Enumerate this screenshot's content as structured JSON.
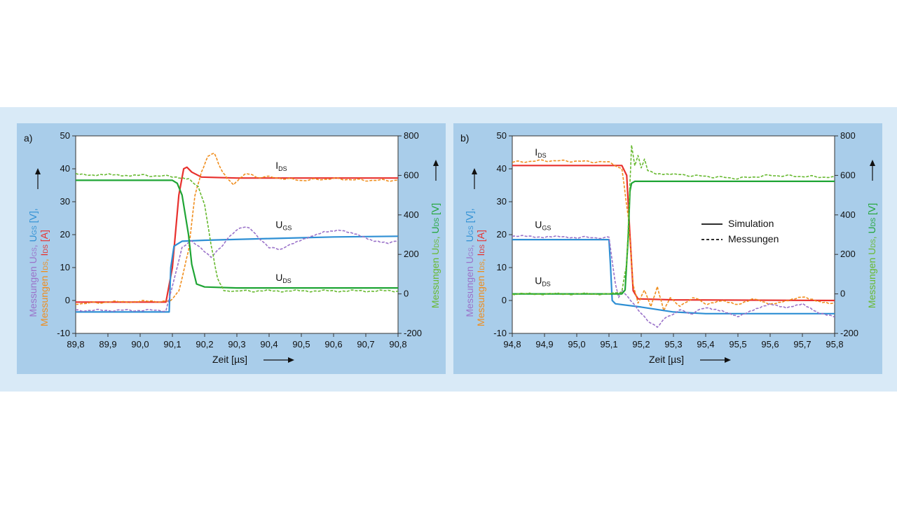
{
  "colors": {
    "simulation_ugs": "#2e8fd4",
    "simulation_ids": "#e8302d",
    "simulation_uds": "#1fa535",
    "measurement_ugs": "#9a72c9",
    "measurement_ids": "#f08d1c",
    "measurement_uds": "#67b92f"
  },
  "chart_data": [
    {
      "type": "line",
      "panel_label": "a)",
      "xlabel": "Zeit [µs]",
      "x_ticks": [
        "89,8",
        "89,9",
        "90,0",
        "90,1",
        "90,2",
        "90,3",
        "90,4",
        "90,5",
        "90,6",
        "90,7",
        "90,8"
      ],
      "xlim": [
        89.8,
        90.8
      ],
      "ylim_left": [
        -10,
        50
      ],
      "y_ticks_left": [
        "-10",
        "0",
        "10",
        "20",
        "30",
        "40",
        "50"
      ],
      "ylim_right": [
        -200,
        800
      ],
      "y_ticks_right": [
        "-200",
        "0",
        "200",
        "400",
        "600",
        "800"
      ],
      "ylabel_left": {
        "line1": [
          {
            "t": "Messungen U",
            "c": "measurement_ugs"
          },
          {
            "t": "GS",
            "c": "measurement_ugs",
            "sub": true
          },
          {
            "t": ", ",
            "c": "measurement_ugs"
          },
          {
            "t": "U",
            "c": "simulation_ugs"
          },
          {
            "t": "GS",
            "c": "simulation_ugs",
            "sub": true
          },
          {
            "t": " [V],",
            "c": "simulation_ugs"
          }
        ],
        "line2": [
          {
            "t": "Messungen I",
            "c": "measurement_ids"
          },
          {
            "t": "DS",
            "c": "measurement_ids",
            "sub": true
          },
          {
            "t": ", ",
            "c": "measurement_ids"
          },
          {
            "t": "I",
            "c": "simulation_ids"
          },
          {
            "t": "DS",
            "c": "simulation_ids",
            "sub": true
          },
          {
            "t": " [A]",
            "c": "simulation_ids"
          }
        ]
      },
      "ylabel_right": [
        {
          "t": "Messungen U",
          "c": "measurement_uds"
        },
        {
          "t": "DS",
          "c": "measurement_uds",
          "sub": true
        },
        {
          "t": ", ",
          "c": "measurement_uds"
        },
        {
          "t": "U",
          "c": "simulation_uds"
        },
        {
          "t": "DS",
          "c": "simulation_uds",
          "sub": true
        },
        {
          "t": " [V]",
          "c": "simulation_uds"
        }
      ],
      "annotations": [
        {
          "text": "I",
          "sub": "DS",
          "x": 90.42,
          "y": 40
        },
        {
          "text": "U",
          "sub": "GS",
          "x": 90.42,
          "y": 22
        },
        {
          "text": "U",
          "sub": "DS",
          "x": 90.42,
          "y": 6
        }
      ],
      "series": [
        {
          "color": "simulation_ids",
          "style": "solid",
          "axis": "left",
          "points": [
            [
              89.8,
              -0.5
            ],
            [
              90.08,
              -0.5
            ],
            [
              90.1,
              10
            ],
            [
              90.12,
              32
            ],
            [
              90.135,
              40
            ],
            [
              90.145,
              40.5
            ],
            [
              90.16,
              39
            ],
            [
              90.19,
              37.5
            ],
            [
              90.3,
              37.2
            ],
            [
              90.8,
              37.2
            ]
          ]
        },
        {
          "color": "measurement_ids",
          "style": "dashed",
          "axis": "left",
          "points": [
            [
              89.8,
              -1
            ],
            [
              89.9,
              -0.5
            ],
            [
              90.05,
              -0.2
            ],
            [
              90.09,
              -0.5
            ],
            [
              90.12,
              3
            ],
            [
              90.15,
              15
            ],
            [
              90.17,
              32
            ],
            [
              90.19,
              39
            ],
            [
              90.21,
              44
            ],
            [
              90.23,
              45
            ],
            [
              90.25,
              40
            ],
            [
              90.27,
              37
            ],
            [
              90.29,
              35
            ],
            [
              90.31,
              37
            ],
            [
              90.33,
              38.5
            ],
            [
              90.36,
              37.5
            ],
            [
              90.4,
              37.5
            ],
            [
              90.5,
              36.5
            ],
            [
              90.6,
              37
            ],
            [
              90.7,
              36.5
            ],
            [
              90.8,
              36.5
            ]
          ]
        },
        {
          "color": "simulation_ugs",
          "style": "solid",
          "axis": "left",
          "points": [
            [
              89.8,
              -3.5
            ],
            [
              90.09,
              -3.5
            ],
            [
              90.095,
              10
            ],
            [
              90.105,
              16.5
            ],
            [
              90.13,
              18
            ],
            [
              90.2,
              18.3
            ],
            [
              90.4,
              18.8
            ],
            [
              90.6,
              19.3
            ],
            [
              90.8,
              19.5
            ]
          ]
        },
        {
          "color": "measurement_ugs",
          "style": "dashed",
          "axis": "left",
          "points": [
            [
              89.8,
              -3
            ],
            [
              90.08,
              -3
            ],
            [
              90.11,
              8
            ],
            [
              90.13,
              16
            ],
            [
              90.16,
              18
            ],
            [
              90.19,
              16
            ],
            [
              90.22,
              13
            ],
            [
              90.25,
              16
            ],
            [
              90.28,
              20
            ],
            [
              90.31,
              22
            ],
            [
              90.34,
              22
            ],
            [
              90.37,
              19
            ],
            [
              90.4,
              16
            ],
            [
              90.43,
              15.5
            ],
            [
              90.47,
              17
            ],
            [
              90.52,
              19
            ],
            [
              90.57,
              21
            ],
            [
              90.62,
              21.5
            ],
            [
              90.67,
              20
            ],
            [
              90.72,
              18
            ],
            [
              90.77,
              17.5
            ],
            [
              90.8,
              18.5
            ]
          ]
        },
        {
          "color": "simulation_uds",
          "style": "solid",
          "axis": "right",
          "points": [
            [
              89.8,
              575
            ],
            [
              90.1,
              575
            ],
            [
              90.115,
              560
            ],
            [
              90.13,
              500
            ],
            [
              90.15,
              300
            ],
            [
              90.16,
              150
            ],
            [
              90.175,
              50
            ],
            [
              90.2,
              35
            ],
            [
              90.3,
              30
            ],
            [
              90.8,
              30
            ]
          ]
        },
        {
          "color": "measurement_uds",
          "style": "dashed",
          "axis": "right",
          "points": [
            [
              89.8,
              605
            ],
            [
              90.0,
              600
            ],
            [
              90.1,
              595
            ],
            [
              90.15,
              585
            ],
            [
              90.18,
              540
            ],
            [
              90.2,
              450
            ],
            [
              90.22,
              250
            ],
            [
              90.24,
              80
            ],
            [
              90.26,
              20
            ],
            [
              90.28,
              15
            ],
            [
              90.35,
              15
            ],
            [
              90.8,
              15
            ]
          ]
        }
      ]
    },
    {
      "type": "line",
      "panel_label": "b)",
      "xlabel": "Zeit [µs]",
      "x_ticks": [
        "94,8",
        "94,9",
        "95,0",
        "95,1",
        "95,2",
        "95,3",
        "95,4",
        "95,5",
        "95,6",
        "95,7",
        "95,8"
      ],
      "xlim": [
        94.8,
        95.8
      ],
      "ylim_left": [
        -10,
        50
      ],
      "y_ticks_left": [
        "-10",
        "0",
        "10",
        "20",
        "30",
        "40",
        "50"
      ],
      "ylim_right": [
        -200,
        800
      ],
      "y_ticks_right": [
        "-200",
        "0",
        "200",
        "400",
        "600",
        "800"
      ],
      "ylabel_left": {
        "line1": [
          {
            "t": "Messungen U",
            "c": "measurement_ugs"
          },
          {
            "t": "GS",
            "c": "measurement_ugs",
            "sub": true
          },
          {
            "t": ", ",
            "c": "measurement_ugs"
          },
          {
            "t": "U",
            "c": "simulation_ugs"
          },
          {
            "t": "GS",
            "c": "simulation_ugs",
            "sub": true
          },
          {
            "t": " [V],",
            "c": "simulation_ugs"
          }
        ],
        "line2": [
          {
            "t": "Messungen I",
            "c": "measurement_ids"
          },
          {
            "t": "DS",
            "c": "measurement_ids",
            "sub": true
          },
          {
            "t": ", ",
            "c": "measurement_ids"
          },
          {
            "t": "I",
            "c": "simulation_ids"
          },
          {
            "t": "DS",
            "c": "simulation_ids",
            "sub": true
          },
          {
            "t": " [A]",
            "c": "simulation_ids"
          }
        ]
      },
      "ylabel_right": [
        {
          "t": "Messungen U",
          "c": "measurement_uds"
        },
        {
          "t": "DS",
          "c": "measurement_uds",
          "sub": true
        },
        {
          "t": ", ",
          "c": "measurement_uds"
        },
        {
          "t": "U",
          "c": "simulation_uds"
        },
        {
          "t": "DS",
          "c": "simulation_uds",
          "sub": true
        },
        {
          "t": " [V]",
          "c": "simulation_uds"
        }
      ],
      "annotations": [
        {
          "text": "I",
          "sub": "DS",
          "x": 94.87,
          "y": 44
        },
        {
          "text": "U",
          "sub": "GS",
          "x": 94.87,
          "y": 22
        },
        {
          "text": "U",
          "sub": "DS",
          "x": 94.87,
          "y": 5
        }
      ],
      "legend": {
        "position": "center-right",
        "items": [
          {
            "label": "Simulation",
            "style": "solid"
          },
          {
            "label": "Messungen",
            "style": "dashed"
          }
        ]
      },
      "series": [
        {
          "color": "simulation_ids",
          "style": "solid",
          "axis": "left",
          "points": [
            [
              94.8,
              41
            ],
            [
              95.14,
              41
            ],
            [
              95.155,
              38
            ],
            [
              95.165,
              20
            ],
            [
              95.175,
              3
            ],
            [
              95.19,
              0.5
            ],
            [
              95.3,
              0.2
            ],
            [
              95.8,
              0
            ]
          ]
        },
        {
          "color": "measurement_ids",
          "style": "dashed",
          "axis": "left",
          "points": [
            [
              94.8,
              42
            ],
            [
              94.9,
              42.5
            ],
            [
              95.0,
              42.3
            ],
            [
              95.1,
              42
            ],
            [
              95.14,
              40
            ],
            [
              95.16,
              25
            ],
            [
              95.175,
              5
            ],
            [
              95.19,
              -1
            ],
            [
              95.21,
              3
            ],
            [
              95.23,
              -2
            ],
            [
              95.25,
              4
            ],
            [
              95.27,
              -3
            ],
            [
              95.29,
              1
            ],
            [
              95.32,
              -2
            ],
            [
              95.36,
              1
            ],
            [
              95.4,
              -1
            ],
            [
              95.45,
              0
            ],
            [
              95.5,
              -1.5
            ],
            [
              95.55,
              0.5
            ],
            [
              95.6,
              -1
            ],
            [
              95.65,
              0
            ],
            [
              95.7,
              1
            ],
            [
              95.75,
              -0.5
            ],
            [
              95.8,
              -1
            ]
          ]
        },
        {
          "color": "simulation_ugs",
          "style": "solid",
          "axis": "left",
          "points": [
            [
              94.8,
              18.5
            ],
            [
              95.1,
              18.5
            ],
            [
              95.105,
              10
            ],
            [
              95.11,
              0
            ],
            [
              95.12,
              -1
            ],
            [
              95.2,
              -2
            ],
            [
              95.3,
              -3.5
            ],
            [
              95.4,
              -4
            ],
            [
              95.8,
              -4
            ]
          ]
        },
        {
          "color": "measurement_ugs",
          "style": "dashed",
          "axis": "left",
          "points": [
            [
              94.8,
              19.5
            ],
            [
              95.0,
              19.2
            ],
            [
              95.1,
              19
            ],
            [
              95.11,
              12
            ],
            [
              95.12,
              5
            ],
            [
              95.13,
              1
            ],
            [
              95.14,
              3
            ],
            [
              95.16,
              1
            ],
            [
              95.19,
              -3
            ],
            [
              95.22,
              -6
            ],
            [
              95.25,
              -8
            ],
            [
              95.28,
              -5
            ],
            [
              95.32,
              -3
            ],
            [
              95.36,
              -4
            ],
            [
              95.4,
              -2
            ],
            [
              95.45,
              -3
            ],
            [
              95.5,
              -5
            ],
            [
              95.55,
              -3
            ],
            [
              95.6,
              -1
            ],
            [
              95.65,
              -2
            ],
            [
              95.7,
              -1
            ],
            [
              95.75,
              -4
            ],
            [
              95.8,
              -5
            ]
          ]
        },
        {
          "color": "simulation_uds",
          "style": "solid",
          "axis": "right",
          "points": [
            [
              94.8,
              0
            ],
            [
              95.14,
              0
            ],
            [
              95.15,
              20
            ],
            [
              95.16,
              300
            ],
            [
              95.165,
              520
            ],
            [
              95.17,
              560
            ],
            [
              95.18,
              570
            ],
            [
              95.3,
              570
            ],
            [
              95.8,
              570
            ]
          ]
        },
        {
          "color": "measurement_uds",
          "style": "dashed",
          "axis": "right",
          "points": [
            [
              94.8,
              0
            ],
            [
              95.1,
              0
            ],
            [
              95.14,
              10
            ],
            [
              95.155,
              150
            ],
            [
              95.165,
              560
            ],
            [
              95.17,
              750
            ],
            [
              95.18,
              650
            ],
            [
              95.19,
              700
            ],
            [
              95.2,
              640
            ],
            [
              95.21,
              680
            ],
            [
              95.22,
              625
            ],
            [
              95.25,
              610
            ],
            [
              95.3,
              605
            ],
            [
              95.4,
              595
            ],
            [
              95.5,
              585
            ],
            [
              95.6,
              600
            ],
            [
              95.7,
              595
            ],
            [
              95.8,
              590
            ]
          ]
        }
      ]
    }
  ]
}
